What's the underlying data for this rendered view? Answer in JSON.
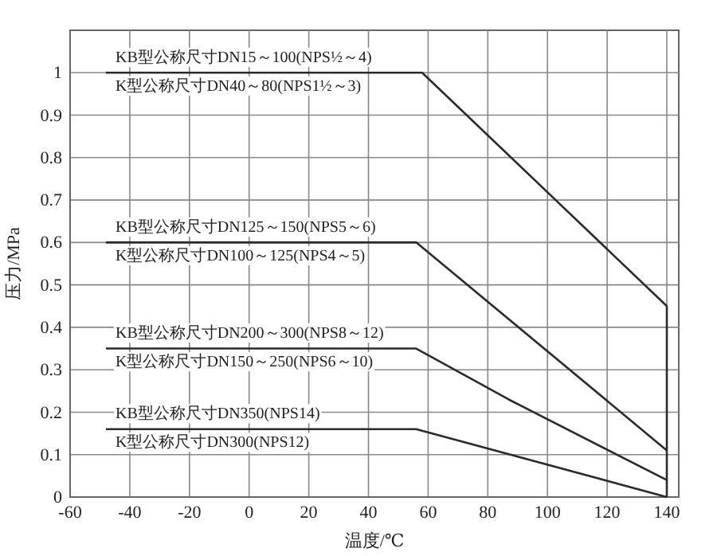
{
  "chart_data": {
    "type": "line",
    "xlabel": "温度/℃",
    "ylabel": "压力/MPa",
    "xlim": [
      -60,
      144
    ],
    "ylim": [
      0,
      1.1
    ],
    "xticks": [
      -60,
      -40,
      -20,
      0,
      20,
      40,
      60,
      80,
      100,
      120,
      140
    ],
    "yticks": [
      0,
      0.1,
      0.2,
      0.3,
      0.4,
      0.5,
      0.6,
      0.7,
      0.8,
      0.9,
      1
    ],
    "grid": true,
    "marker": "none",
    "line_style": "solid",
    "series": [
      {
        "color": "#2b2b2b",
        "x": [
          -48,
          58,
          140,
          140
        ],
        "values": [
          1,
          1,
          0.45,
          0
        ]
      },
      {
        "color": "#2b2b2b",
        "x": [
          -48,
          56,
          140
        ],
        "values": [
          0.6,
          0.6,
          0.11
        ]
      },
      {
        "color": "#2b2b2b",
        "x": [
          -48,
          56,
          87,
          140
        ],
        "values": [
          0.35,
          0.35,
          0.23,
          0.04
        ]
      },
      {
        "color": "#2b2b2b",
        "x": [
          -48,
          56,
          140
        ],
        "values": [
          0.16,
          0.16,
          0
        ]
      }
    ],
    "annotations": [
      "KB型公称尺寸DN15～100(NPS½～4)",
      "K型公称尺寸DN40～80(NPS1½～3)",
      "KB型公称尺寸DN125～150(NPS5～6)",
      "K型公称尺寸DN100～125(NPS4～5)",
      "KB型公称尺寸DN200～300(NPS8～12)",
      "K型公称尺寸DN150～250(NPS6～10)",
      "KB型公称尺寸DN350(NPS14)",
      "K型公称尺寸DN300(NPS12)"
    ]
  }
}
